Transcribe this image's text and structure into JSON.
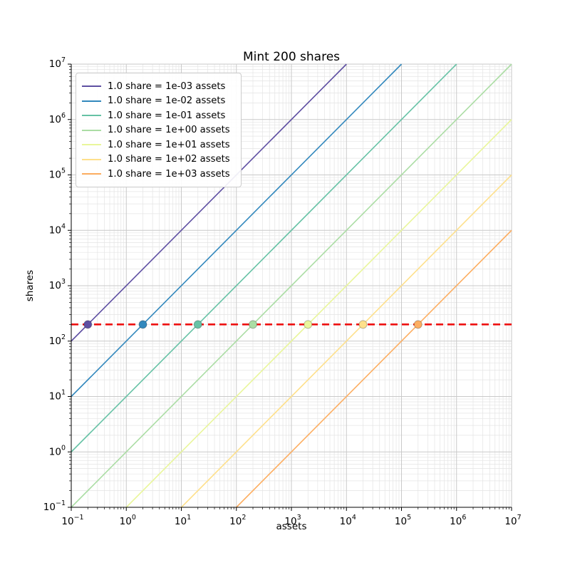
{
  "figure": {
    "title": "Mint 200 shares",
    "xlabel": "assets",
    "ylabel": "shares"
  },
  "chart_data": {
    "type": "line",
    "title": "Mint 200 shares",
    "xlabel": "assets",
    "ylabel": "shares",
    "xscale": "log",
    "yscale": "log",
    "xlim": [
      0.1,
      10000000
    ],
    "ylim": [
      0.1,
      10000000
    ],
    "tick_base": "10",
    "x_tick_exponents": [
      -1,
      0,
      1,
      2,
      3,
      4,
      5,
      6,
      7
    ],
    "y_tick_exponents": [
      -1,
      0,
      1,
      2,
      3,
      4,
      5,
      6,
      7
    ],
    "grid": {
      "major": true,
      "minor": true
    },
    "legend_position": "upper left",
    "target_shares": 200,
    "target_line": {
      "shares": 200,
      "color": "#ee1111",
      "style": "dashed"
    },
    "series": [
      {
        "label": "1.0 share = 1e-03 assets",
        "assets_per_share": 0.001,
        "color": "#5e4fa2",
        "point": {
          "assets": 0.2,
          "shares": 200
        }
      },
      {
        "label": "1.0 share = 1e-02 assets",
        "assets_per_share": 0.01,
        "color": "#3288bd",
        "point": {
          "assets": 2,
          "shares": 200
        }
      },
      {
        "label": "1.0 share = 1e-01 assets",
        "assets_per_share": 0.1,
        "color": "#66c2a5",
        "point": {
          "assets": 20,
          "shares": 200
        }
      },
      {
        "label": "1.0 share = 1e+00 assets",
        "assets_per_share": 1,
        "color": "#abdda4",
        "point": {
          "assets": 200,
          "shares": 200
        }
      },
      {
        "label": "1.0 share = 1e+01 assets",
        "assets_per_share": 10,
        "color": "#e9f69b",
        "point": {
          "assets": 2000,
          "shares": 200
        }
      },
      {
        "label": "1.0 share = 1e+02 assets",
        "assets_per_share": 100,
        "color": "#fee08b",
        "point": {
          "assets": 20000,
          "shares": 200
        }
      },
      {
        "label": "1.0 share = 1e+03 assets",
        "assets_per_share": 1000,
        "color": "#fdae61",
        "point": {
          "assets": 200000,
          "shares": 200
        }
      }
    ]
  }
}
